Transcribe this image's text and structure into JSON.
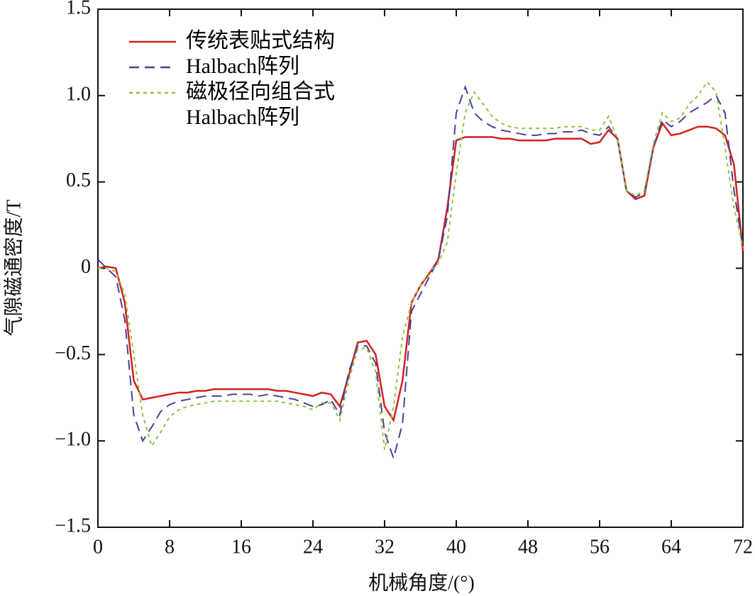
{
  "chart_data": {
    "type": "line",
    "xlabel": "机械角度/(°)",
    "ylabel": "气隙磁通密度/T",
    "x": [
      0,
      1,
      2,
      3,
      4,
      5,
      6,
      7,
      8,
      9,
      10,
      11,
      12,
      13,
      14,
      15,
      16,
      17,
      18,
      19,
      20,
      21,
      22,
      23,
      24,
      25,
      26,
      27,
      28,
      29,
      30,
      31,
      32,
      33,
      34,
      35,
      36,
      37,
      38,
      39,
      40,
      41,
      42,
      43,
      44,
      45,
      46,
      47,
      48,
      49,
      50,
      51,
      52,
      53,
      54,
      55,
      56,
      57,
      58,
      59,
      60,
      61,
      62,
      63,
      64,
      65,
      66,
      67,
      68,
      69,
      70,
      71,
      72
    ],
    "series": [
      {
        "name": "传统表贴式结构",
        "color": "#d42020",
        "dash": "solid",
        "values": [
          0,
          0.01,
          0,
          -0.2,
          -0.65,
          -0.76,
          -0.75,
          -0.74,
          -0.73,
          -0.72,
          -0.72,
          -0.71,
          -0.71,
          -0.7,
          -0.7,
          -0.7,
          -0.7,
          -0.7,
          -0.7,
          -0.7,
          -0.71,
          -0.71,
          -0.72,
          -0.73,
          -0.74,
          -0.72,
          -0.73,
          -0.8,
          -0.62,
          -0.43,
          -0.42,
          -0.5,
          -0.8,
          -0.88,
          -0.65,
          -0.2,
          -0.1,
          -0.03,
          0.05,
          0.35,
          0.74,
          0.76,
          0.76,
          0.76,
          0.76,
          0.75,
          0.75,
          0.74,
          0.74,
          0.74,
          0.74,
          0.75,
          0.75,
          0.75,
          0.75,
          0.72,
          0.73,
          0.8,
          0.75,
          0.45,
          0.4,
          0.42,
          0.7,
          0.84,
          0.77,
          0.78,
          0.8,
          0.82,
          0.82,
          0.81,
          0.77,
          0.6,
          0.1
        ]
      },
      {
        "name": "Halbach阵列",
        "color": "#4a3f9a",
        "dash": "dashed",
        "values": [
          0.05,
          0,
          -0.05,
          -0.3,
          -0.85,
          -1.0,
          -0.92,
          -0.83,
          -0.79,
          -0.77,
          -0.76,
          -0.75,
          -0.74,
          -0.74,
          -0.74,
          -0.73,
          -0.73,
          -0.73,
          -0.74,
          -0.73,
          -0.74,
          -0.75,
          -0.76,
          -0.78,
          -0.8,
          -0.79,
          -0.76,
          -0.85,
          -0.6,
          -0.45,
          -0.45,
          -0.55,
          -0.95,
          -1.1,
          -0.9,
          -0.25,
          -0.15,
          -0.05,
          0.05,
          0.3,
          0.9,
          1.05,
          0.9,
          0.85,
          0.82,
          0.8,
          0.79,
          0.78,
          0.77,
          0.77,
          0.78,
          0.78,
          0.79,
          0.79,
          0.8,
          0.78,
          0.77,
          0.82,
          0.75,
          0.45,
          0.41,
          0.44,
          0.7,
          0.86,
          0.82,
          0.85,
          0.9,
          0.93,
          0.96,
          1.0,
          0.9,
          0.45,
          0.12
        ]
      },
      {
        "name": "磁极径向组合式Halbach阵列",
        "color": "#8cc63f",
        "dash": "dotted",
        "values": [
          0,
          0,
          -0.02,
          -0.15,
          -0.5,
          -0.85,
          -1.03,
          -0.95,
          -0.86,
          -0.82,
          -0.8,
          -0.79,
          -0.78,
          -0.77,
          -0.77,
          -0.77,
          -0.77,
          -0.77,
          -0.77,
          -0.77,
          -0.77,
          -0.78,
          -0.79,
          -0.8,
          -0.82,
          -0.78,
          -0.78,
          -0.88,
          -0.65,
          -0.47,
          -0.46,
          -0.6,
          -1.05,
          -0.8,
          -0.4,
          -0.2,
          -0.1,
          -0.02,
          0.03,
          0.15,
          0.55,
          0.9,
          1.02,
          0.95,
          0.88,
          0.84,
          0.82,
          0.81,
          0.81,
          0.81,
          0.81,
          0.81,
          0.82,
          0.82,
          0.82,
          0.8,
          0.8,
          0.88,
          0.75,
          0.45,
          0.42,
          0.45,
          0.72,
          0.9,
          0.85,
          0.87,
          0.95,
          1.0,
          1.08,
          1.02,
          0.7,
          0.35,
          0.12
        ]
      }
    ],
    "xlim": [
      0,
      72
    ],
    "xticks": [
      0,
      8,
      16,
      24,
      32,
      40,
      48,
      56,
      64,
      72
    ],
    "ylim": [
      -1.5,
      1.5
    ],
    "yticks": [
      {
        "value": -1.5,
        "label": "−1.5"
      },
      {
        "value": -1,
        "label": "−1.0"
      },
      {
        "value": -0.5,
        "label": "−0.5"
      },
      0,
      0.5,
      {
        "value": 1,
        "label": "1.0"
      },
      1.5
    ]
  }
}
